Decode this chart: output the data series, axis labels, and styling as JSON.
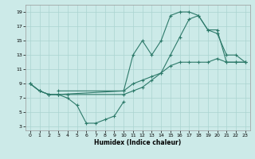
{
  "xlabel": "Humidex (Indice chaleur)",
  "background_color": "#cceae8",
  "grid_color": "#aad4d0",
  "line_color": "#2d7a6a",
  "xlim": [
    -0.5,
    23.5
  ],
  "ylim": [
    2.5,
    20
  ],
  "xticks": [
    0,
    1,
    2,
    3,
    4,
    5,
    6,
    7,
    8,
    9,
    10,
    11,
    12,
    13,
    14,
    15,
    16,
    17,
    18,
    19,
    20,
    21,
    22,
    23
  ],
  "yticks": [
    3,
    5,
    7,
    9,
    11,
    13,
    15,
    17,
    19
  ],
  "line1_x": [
    0,
    1,
    2,
    3,
    10,
    11,
    12,
    13,
    14,
    15,
    16,
    17,
    18,
    19,
    20,
    21,
    22,
    23
  ],
  "line1_y": [
    9,
    8,
    7.5,
    7.5,
    8,
    13,
    15,
    13,
    15,
    18.5,
    19,
    19,
    18.5,
    16.5,
    16,
    13,
    13,
    12
  ],
  "line2_x": [
    0,
    1,
    2,
    3,
    4,
    10,
    11,
    12,
    13,
    14,
    15,
    16,
    17,
    18,
    19,
    20,
    21,
    22,
    23
  ],
  "line2_y": [
    9,
    8,
    7.5,
    7.5,
    7.5,
    7.5,
    8,
    8.5,
    9.5,
    10.5,
    13,
    15.5,
    18,
    18.5,
    16.5,
    16.5,
    12,
    12,
    12
  ],
  "line3_x": [
    3,
    10,
    11,
    12,
    13,
    14,
    15,
    16,
    17,
    18,
    19,
    20,
    21,
    22,
    23
  ],
  "line3_y": [
    8,
    8,
    9,
    9.5,
    10,
    10.5,
    11.5,
    12,
    12,
    12,
    12,
    12.5,
    12,
    12,
    12
  ],
  "line4_x": [
    0,
    1,
    2,
    3,
    4,
    5,
    6,
    7,
    8,
    9,
    10
  ],
  "line4_y": [
    9,
    8,
    7.5,
    7.5,
    7,
    6,
    3.5,
    3.5,
    4,
    4.5,
    6.5
  ]
}
